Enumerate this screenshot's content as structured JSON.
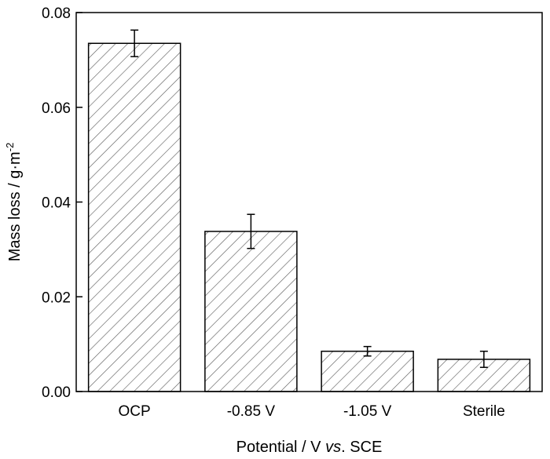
{
  "chart_data": {
    "type": "bar",
    "categories": [
      "OCP",
      "-0.85 V",
      "-1.05 V",
      "Sterile"
    ],
    "values": [
      0.0735,
      0.0338,
      0.0085,
      0.0068
    ],
    "error": [
      0.0028,
      0.0036,
      0.001,
      0.0017
    ],
    "ylim": [
      0,
      0.08
    ],
    "yticks": [
      "0.00",
      "0.02",
      "0.04",
      "0.06",
      "0.08"
    ],
    "xlabel_parts": {
      "pre": "Potential / V ",
      "italic": "vs",
      "post": ". SCE"
    },
    "ylabel_parts": {
      "base": "Mass loss / g·m",
      "sup": "-2"
    },
    "bar_fill": "hatched",
    "grid": false,
    "legend": "none"
  },
  "colors": {
    "axis": "#000000",
    "bar_stroke": "#000000",
    "hatch": "#555555",
    "background": "#ffffff"
  }
}
